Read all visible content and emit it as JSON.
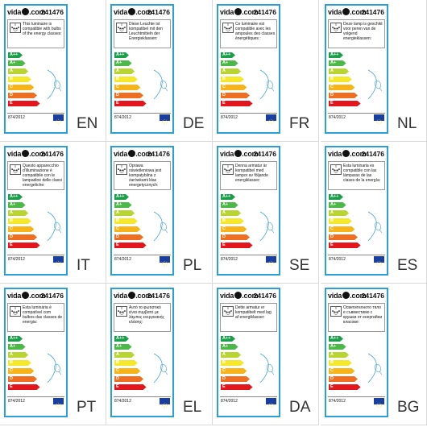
{
  "brand_text": "vida",
  "brand_suffix": ".com",
  "product_code": "241476",
  "regulation": "874/2012",
  "energy_classes": [
    "A++",
    "A+",
    "A",
    "B",
    "C",
    "D",
    "E"
  ],
  "class_colors": [
    "#1aa04a",
    "#4cb848",
    "#b8d430",
    "#f5e82a",
    "#f7b418",
    "#ef6e1f",
    "#e3151d"
  ],
  "labels": [
    {
      "lang": "EN",
      "text": "This luminaire is compatible with bulbs of the energy classes:"
    },
    {
      "lang": "DE",
      "text": "Diese Leuchte ist kompatibel mit den Leuchtmitteln der Energieklassen:"
    },
    {
      "lang": "FR",
      "text": "Ce luminaire est compatible avec les ampoules des classes énergétiques :"
    },
    {
      "lang": "NL",
      "text": "Deze lamp is geschikt voor peren van de volgend energieklassen:"
    },
    {
      "lang": "IT",
      "text": "Questo apparecchio d'illuminazione è compatibile con le lampadine delle classi energetiche:"
    },
    {
      "lang": "PL",
      "text": "Oprawa oświetleniowa jest kompatybilna z żarówkami klas energetycznych:"
    },
    {
      "lang": "SE",
      "text": "Denna armatur är kompatibel med lampor av följande energiklasser:"
    },
    {
      "lang": "ES",
      "text": "Esta luminaria es compatible con las lámparas de las clases de la energía:"
    },
    {
      "lang": "PT",
      "text": "Esta luminária é compatível com bulbos das classes de energia:"
    },
    {
      "lang": "EL",
      "text": "Αυτό το φωτιστικό είναι συμβατό με λάμπες ενεργειακής κλάσης:"
    },
    {
      "lang": "DA",
      "text": "Dette armatur er kompatibelt med lag af energiklasser:"
    },
    {
      "lang": "BG",
      "text": "Осветителното тяло е съвместимо с крушки от енергийни класове:"
    }
  ]
}
